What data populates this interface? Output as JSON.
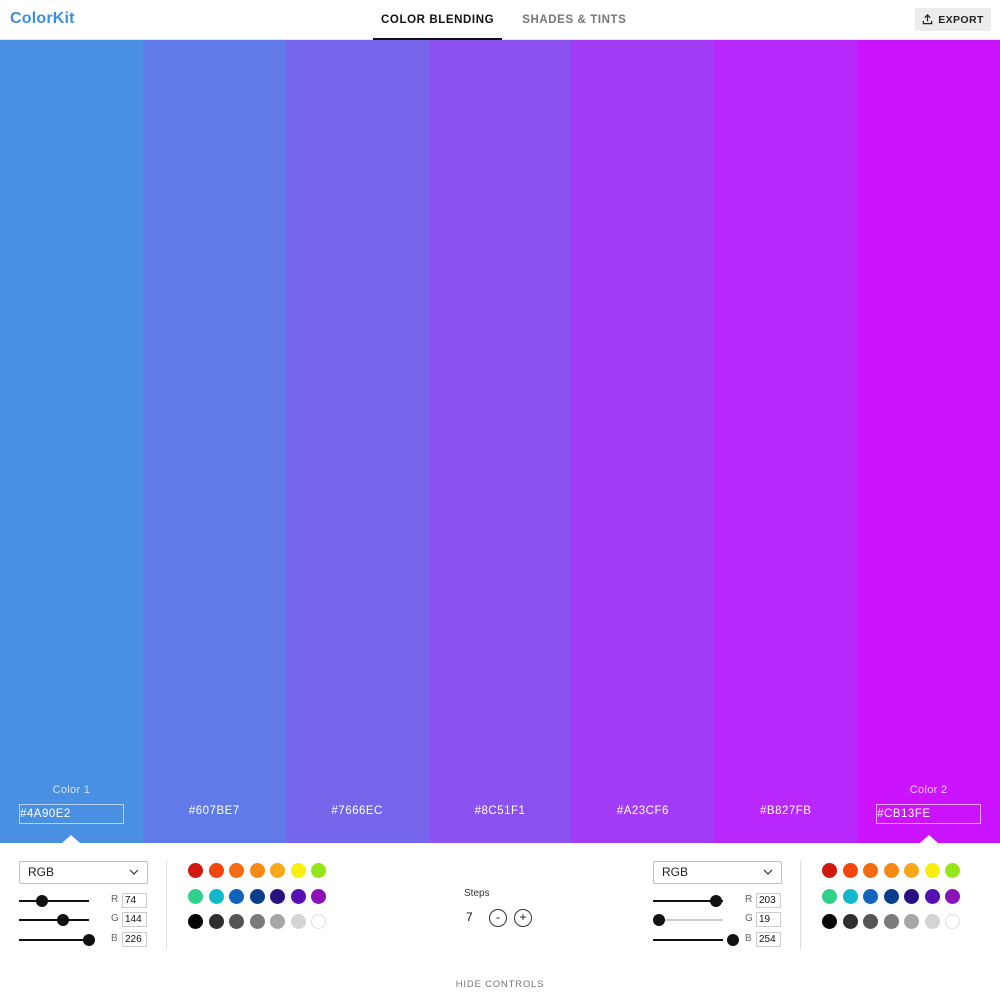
{
  "app": {
    "logo": "ColorKit"
  },
  "tabs": [
    {
      "label": "COLOR BLENDING",
      "active": true
    },
    {
      "label": "SHADES & TINTS",
      "active": false
    }
  ],
  "export_label": "EXPORT",
  "swatches": [
    {
      "hex": "#4A90E2",
      "color": "#4A90E2",
      "label": "Color 1"
    },
    {
      "hex": "#607BE7",
      "color": "#607BE7"
    },
    {
      "hex": "#7666EC",
      "color": "#7666EC"
    },
    {
      "hex": "#8C51F1",
      "color": "#8C51F1"
    },
    {
      "hex": "#A23CF6",
      "color": "#A23CF6"
    },
    {
      "hex": "#B827FB",
      "color": "#B827FB"
    },
    {
      "hex": "#CB13FE",
      "color": "#CB13FE",
      "label": "Color 2"
    }
  ],
  "color1": {
    "mode": "RGB",
    "channels": [
      {
        "letter": "R",
        "value": "74"
      },
      {
        "letter": "G",
        "value": "144"
      },
      {
        "letter": "B",
        "value": "226"
      }
    ]
  },
  "color2": {
    "mode": "RGB",
    "channels": [
      {
        "letter": "R",
        "value": "203"
      },
      {
        "letter": "G",
        "value": "19"
      },
      {
        "letter": "B",
        "value": "254"
      }
    ]
  },
  "palette": [
    [
      "#D0190E",
      "#F2460E",
      "#F26A12",
      "#F88914",
      "#F6A817",
      "#F7EF12",
      "#96E51A"
    ],
    [
      "#2ED08B",
      "#12B7CC",
      "#1164B9",
      "#0A3D8C",
      "#2A1080",
      "#560FB1",
      "#8A12B7"
    ],
    [
      "#050505",
      "#2F2F2F",
      "#555555",
      "#7A7A7A",
      "#A6A6A6",
      "#D4D4D4",
      "#FFFFFF"
    ]
  ],
  "steps": {
    "label": "Steps",
    "value": "7",
    "minus": "-",
    "plus": "+"
  },
  "hide_controls_label": "HIDE CONTROLS"
}
